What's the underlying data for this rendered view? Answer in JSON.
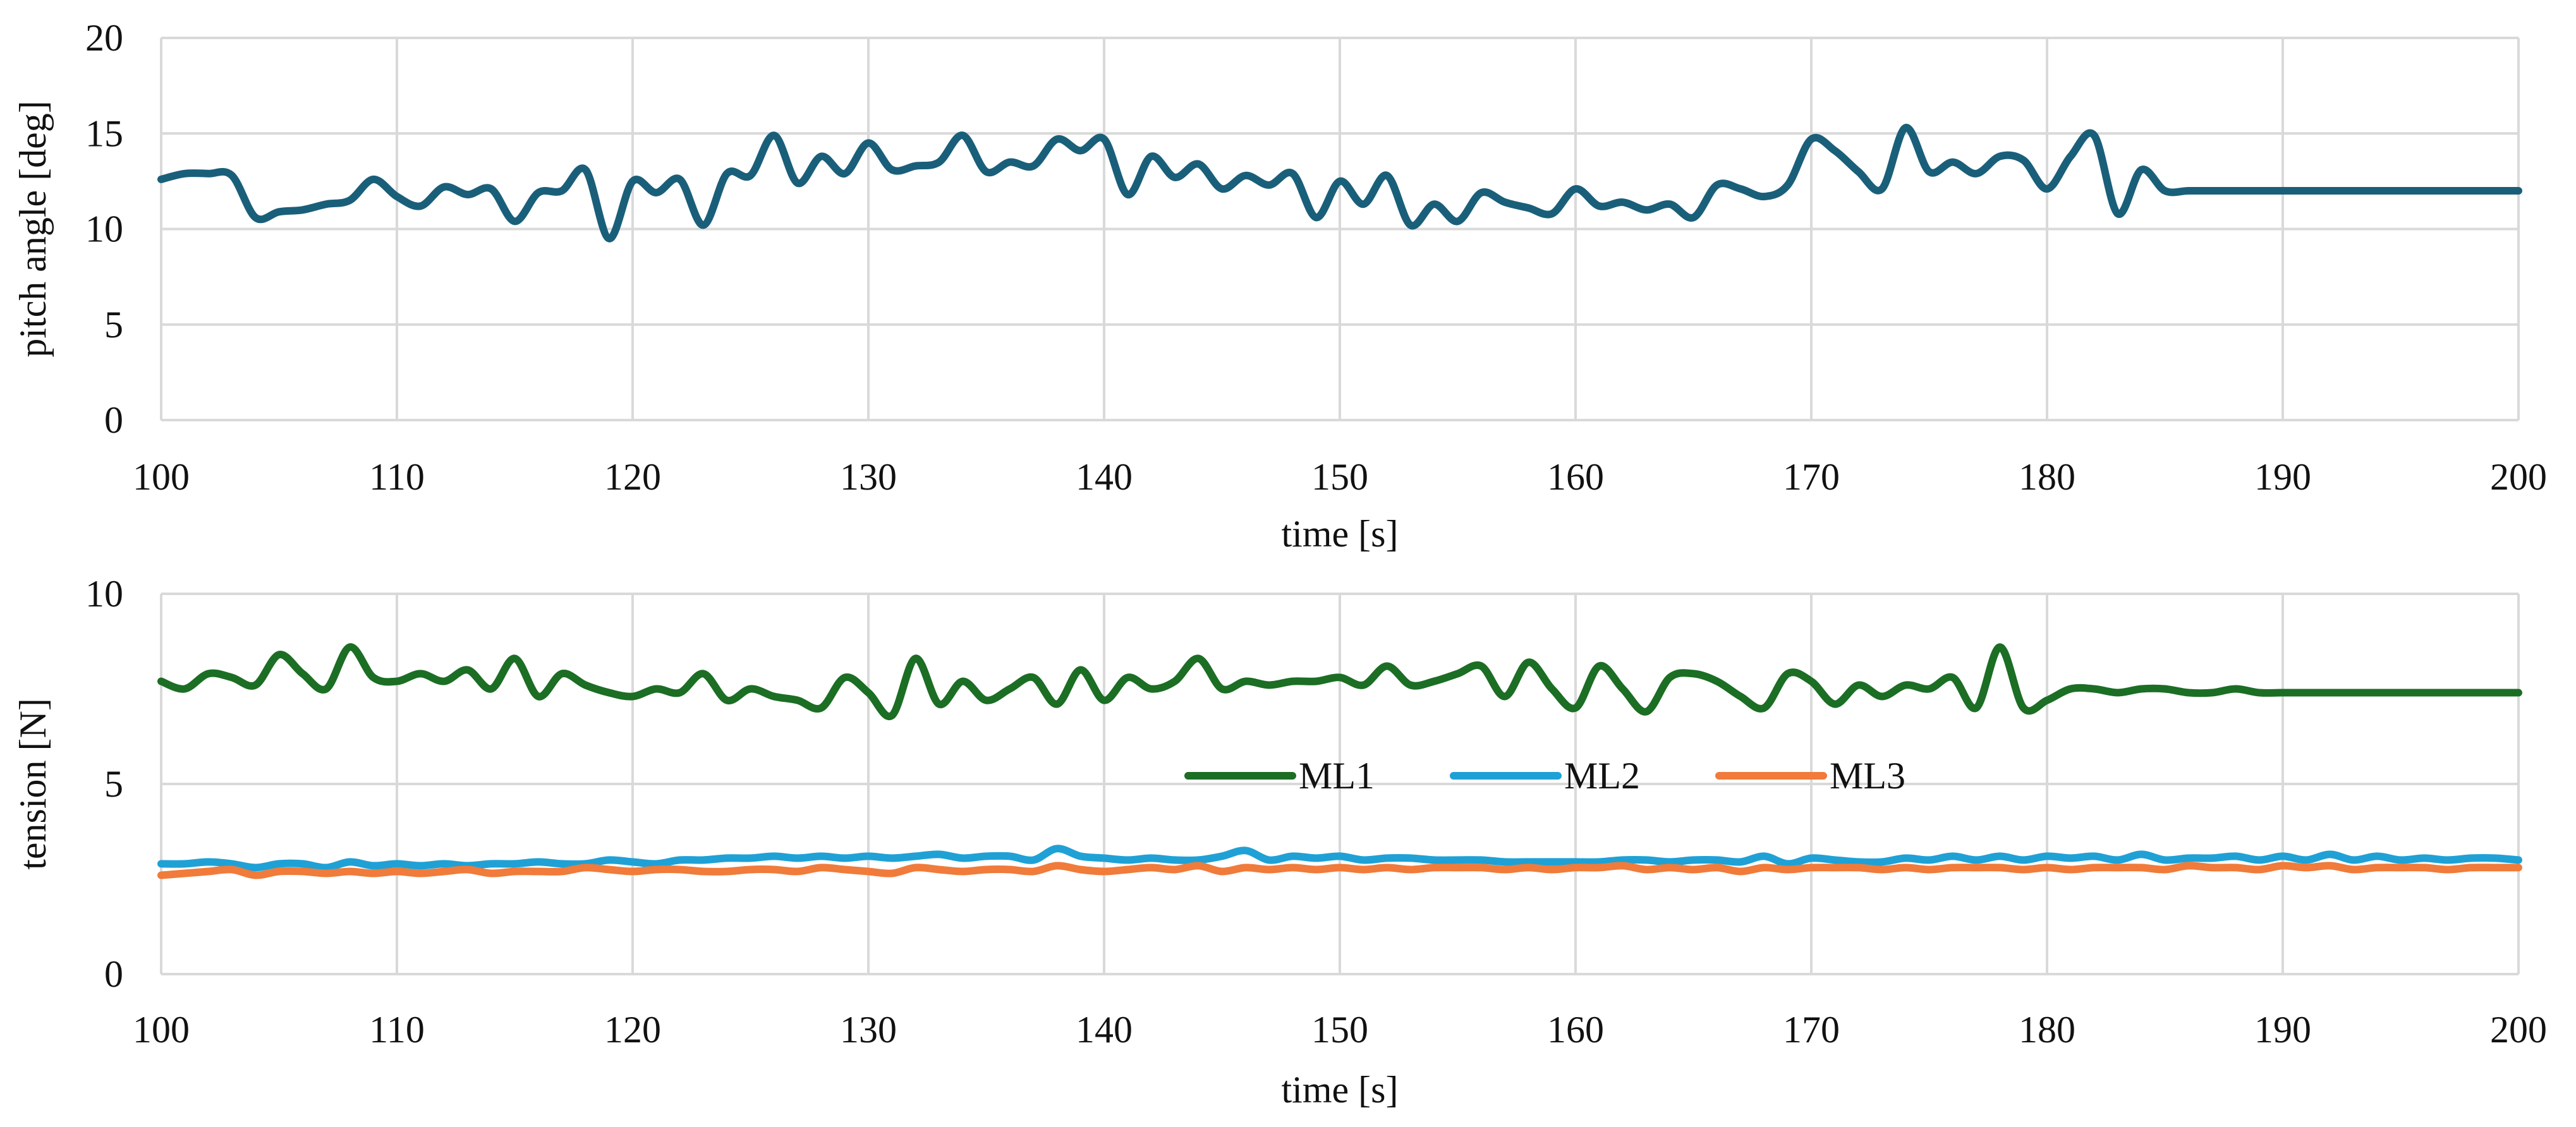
{
  "chart_data": [
    {
      "type": "line",
      "title": "",
      "xlabel": "time [s]",
      "ylabel": "pitch angle [deg]",
      "xlim": [
        100,
        200
      ],
      "ylim": [
        0,
        20
      ],
      "xticks": [
        "100",
        "110",
        "120",
        "130",
        "140",
        "150",
        "160",
        "170",
        "180",
        "190",
        "200"
      ],
      "yticks": [
        "0",
        "5",
        "10",
        "15",
        "20"
      ],
      "grid": true,
      "legend": "none",
      "series": [
        {
          "name": "pitch angle",
          "color": "#1a5f7a",
          "x": [
            100,
            101,
            102,
            103,
            104,
            105,
            106,
            107,
            108,
            109,
            110,
            111,
            112,
            113,
            114,
            115,
            116,
            117,
            118,
            119,
            120,
            121,
            122,
            123,
            124,
            125,
            126,
            127,
            128,
            129,
            130,
            131,
            132,
            133,
            134,
            135,
            136,
            137,
            138,
            139,
            140,
            141,
            142,
            143,
            144,
            145,
            146,
            147,
            148,
            149,
            150,
            151,
            152,
            153,
            154,
            155,
            156,
            157,
            158,
            159,
            160,
            161,
            162,
            163,
            164,
            165,
            166,
            167,
            168,
            169,
            170,
            171,
            172,
            173,
            174,
            175,
            176,
            177,
            178,
            179,
            180,
            181,
            182,
            183,
            184,
            185,
            186,
            187,
            188,
            189,
            190,
            191,
            192,
            193,
            194,
            195,
            196,
            197,
            198,
            199,
            200
          ],
          "values": [
            12.6,
            12.9,
            12.9,
            12.8,
            10.6,
            10.9,
            11.0,
            11.3,
            11.5,
            12.6,
            11.7,
            11.2,
            12.2,
            11.8,
            12.1,
            10.4,
            11.9,
            12.0,
            13.1,
            9.5,
            12.5,
            11.9,
            12.6,
            10.2,
            12.9,
            12.8,
            14.9,
            12.4,
            13.8,
            12.9,
            14.5,
            13.1,
            13.3,
            13.5,
            14.9,
            13.0,
            13.5,
            13.3,
            14.7,
            14.1,
            14.7,
            11.8,
            13.8,
            12.7,
            13.4,
            12.1,
            12.8,
            12.3,
            12.9,
            10.6,
            12.5,
            11.3,
            12.8,
            10.2,
            11.3,
            10.4,
            11.9,
            11.4,
            11.1,
            10.8,
            12.1,
            11.2,
            11.4,
            11.0,
            11.3,
            10.6,
            12.3,
            12.1,
            11.7,
            12.3,
            14.7,
            14.1,
            13.0,
            12.1,
            15.3,
            13.0,
            13.5,
            12.9,
            13.8,
            13.6,
            12.1,
            13.8,
            14.9,
            10.8,
            13.1,
            12.0,
            12.0,
            12.0,
            12.0,
            12.0,
            12.0,
            12.0,
            12.0,
            12.0,
            12.0,
            12.0,
            12.0,
            12.0,
            12.0,
            12.0,
            12.0
          ]
        }
      ]
    },
    {
      "type": "line",
      "title": "",
      "xlabel": "time [s]",
      "ylabel": "tension [N]",
      "xlim": [
        100,
        200
      ],
      "ylim": [
        0,
        10
      ],
      "xticks": [
        "100",
        "110",
        "120",
        "130",
        "140",
        "150",
        "160",
        "170",
        "180",
        "190",
        "200"
      ],
      "yticks": [
        "0",
        "5",
        "10"
      ],
      "grid": true,
      "legend": "center",
      "series": [
        {
          "name": "ML1",
          "color": "#1b6e24",
          "x": [
            100,
            101,
            102,
            103,
            104,
            105,
            106,
            107,
            108,
            109,
            110,
            111,
            112,
            113,
            114,
            115,
            116,
            117,
            118,
            119,
            120,
            121,
            122,
            123,
            124,
            125,
            126,
            127,
            128,
            129,
            130,
            131,
            132,
            133,
            134,
            135,
            136,
            137,
            138,
            139,
            140,
            141,
            142,
            143,
            144,
            145,
            146,
            147,
            148,
            149,
            150,
            151,
            152,
            153,
            154,
            155,
            156,
            157,
            158,
            159,
            160,
            161,
            162,
            163,
            164,
            165,
            166,
            167,
            168,
            169,
            170,
            171,
            172,
            173,
            174,
            175,
            176,
            177,
            178,
            179,
            180,
            181,
            182,
            183,
            184,
            185,
            186,
            187,
            188,
            189,
            190,
            191,
            192,
            193,
            194,
            195,
            196,
            197,
            198,
            199,
            200
          ],
          "values": [
            7.7,
            7.5,
            7.9,
            7.8,
            7.6,
            8.4,
            7.9,
            7.5,
            8.6,
            7.8,
            7.7,
            7.9,
            7.7,
            8.0,
            7.5,
            8.3,
            7.3,
            7.9,
            7.6,
            7.4,
            7.3,
            7.5,
            7.4,
            7.9,
            7.2,
            7.5,
            7.3,
            7.2,
            7.0,
            7.8,
            7.4,
            6.8,
            8.3,
            7.1,
            7.7,
            7.2,
            7.5,
            7.8,
            7.1,
            8.0,
            7.2,
            7.8,
            7.5,
            7.7,
            8.3,
            7.5,
            7.7,
            7.6,
            7.7,
            7.7,
            7.8,
            7.6,
            8.1,
            7.6,
            7.7,
            7.9,
            8.1,
            7.3,
            8.2,
            7.5,
            7.0,
            8.1,
            7.5,
            6.9,
            7.8,
            7.9,
            7.7,
            7.3,
            7.0,
            7.9,
            7.7,
            7.1,
            7.6,
            7.3,
            7.6,
            7.5,
            7.8,
            7.0,
            8.6,
            7.0,
            7.2,
            7.5,
            7.5,
            7.4,
            7.5,
            7.5,
            7.4,
            7.4,
            7.5,
            7.4,
            7.4,
            7.4,
            7.4,
            7.4,
            7.4,
            7.4,
            7.4,
            7.4,
            7.4,
            7.4,
            7.4
          ]
        },
        {
          "name": "ML2",
          "color": "#1fa1d6",
          "x": [
            100,
            101,
            102,
            103,
            104,
            105,
            106,
            107,
            108,
            109,
            110,
            111,
            112,
            113,
            114,
            115,
            116,
            117,
            118,
            119,
            120,
            121,
            122,
            123,
            124,
            125,
            126,
            127,
            128,
            129,
            130,
            131,
            132,
            133,
            134,
            135,
            136,
            137,
            138,
            139,
            140,
            141,
            142,
            143,
            144,
            145,
            146,
            147,
            148,
            149,
            150,
            151,
            152,
            153,
            154,
            155,
            156,
            157,
            158,
            159,
            160,
            161,
            162,
            163,
            164,
            165,
            166,
            167,
            168,
            169,
            170,
            171,
            172,
            173,
            174,
            175,
            176,
            177,
            178,
            179,
            180,
            181,
            182,
            183,
            184,
            185,
            186,
            187,
            188,
            189,
            190,
            191,
            192,
            193,
            194,
            195,
            196,
            197,
            198,
            199,
            200
          ],
          "values": [
            2.9,
            2.9,
            2.95,
            2.9,
            2.8,
            2.9,
            2.9,
            2.8,
            2.95,
            2.85,
            2.9,
            2.85,
            2.9,
            2.85,
            2.9,
            2.9,
            2.95,
            2.9,
            2.9,
            3.0,
            2.95,
            2.9,
            3.0,
            3.0,
            3.05,
            3.05,
            3.1,
            3.05,
            3.1,
            3.05,
            3.1,
            3.05,
            3.1,
            3.15,
            3.05,
            3.1,
            3.1,
            3.0,
            3.3,
            3.1,
            3.05,
            3.0,
            3.05,
            3.0,
            3.0,
            3.1,
            3.25,
            3.0,
            3.1,
            3.05,
            3.1,
            3.0,
            3.05,
            3.05,
            3.0,
            3.0,
            3.0,
            2.95,
            2.95,
            2.95,
            2.95,
            2.95,
            3.0,
            3.0,
            2.95,
            3.0,
            3.0,
            2.95,
            3.1,
            2.9,
            3.05,
            3.0,
            2.95,
            2.95,
            3.05,
            3.0,
            3.1,
            3.0,
            3.1,
            3.0,
            3.1,
            3.05,
            3.1,
            3.0,
            3.15,
            3.0,
            3.05,
            3.05,
            3.1,
            3.0,
            3.1,
            3.0,
            3.15,
            3.0,
            3.1,
            3.0,
            3.05,
            3.0,
            3.05,
            3.05,
            3.0
          ]
        },
        {
          "name": "ML3",
          "color": "#f07b3a",
          "x": [
            100,
            101,
            102,
            103,
            104,
            105,
            106,
            107,
            108,
            109,
            110,
            111,
            112,
            113,
            114,
            115,
            116,
            117,
            118,
            119,
            120,
            121,
            122,
            123,
            124,
            125,
            126,
            127,
            128,
            129,
            130,
            131,
            132,
            133,
            134,
            135,
            136,
            137,
            138,
            139,
            140,
            141,
            142,
            143,
            144,
            145,
            146,
            147,
            148,
            149,
            150,
            151,
            152,
            153,
            154,
            155,
            156,
            157,
            158,
            159,
            160,
            161,
            162,
            163,
            164,
            165,
            166,
            167,
            168,
            169,
            170,
            171,
            172,
            173,
            174,
            175,
            176,
            177,
            178,
            179,
            180,
            181,
            182,
            183,
            184,
            185,
            186,
            187,
            188,
            189,
            190,
            191,
            192,
            193,
            194,
            195,
            196,
            197,
            198,
            199,
            200
          ],
          "values": [
            2.6,
            2.65,
            2.7,
            2.75,
            2.6,
            2.7,
            2.7,
            2.65,
            2.7,
            2.65,
            2.7,
            2.65,
            2.7,
            2.75,
            2.65,
            2.7,
            2.7,
            2.7,
            2.8,
            2.75,
            2.7,
            2.75,
            2.75,
            2.7,
            2.7,
            2.75,
            2.75,
            2.7,
            2.8,
            2.75,
            2.7,
            2.65,
            2.8,
            2.75,
            2.7,
            2.75,
            2.75,
            2.7,
            2.85,
            2.75,
            2.7,
            2.75,
            2.8,
            2.75,
            2.85,
            2.7,
            2.8,
            2.75,
            2.8,
            2.75,
            2.8,
            2.75,
            2.8,
            2.75,
            2.8,
            2.8,
            2.8,
            2.75,
            2.8,
            2.75,
            2.8,
            2.8,
            2.85,
            2.75,
            2.8,
            2.75,
            2.8,
            2.7,
            2.8,
            2.75,
            2.8,
            2.8,
            2.8,
            2.75,
            2.8,
            2.75,
            2.8,
            2.8,
            2.8,
            2.75,
            2.8,
            2.75,
            2.8,
            2.8,
            2.8,
            2.75,
            2.85,
            2.8,
            2.8,
            2.75,
            2.85,
            2.8,
            2.85,
            2.75,
            2.8,
            2.8,
            2.8,
            2.75,
            2.8,
            2.8,
            2.8
          ]
        }
      ]
    }
  ]
}
